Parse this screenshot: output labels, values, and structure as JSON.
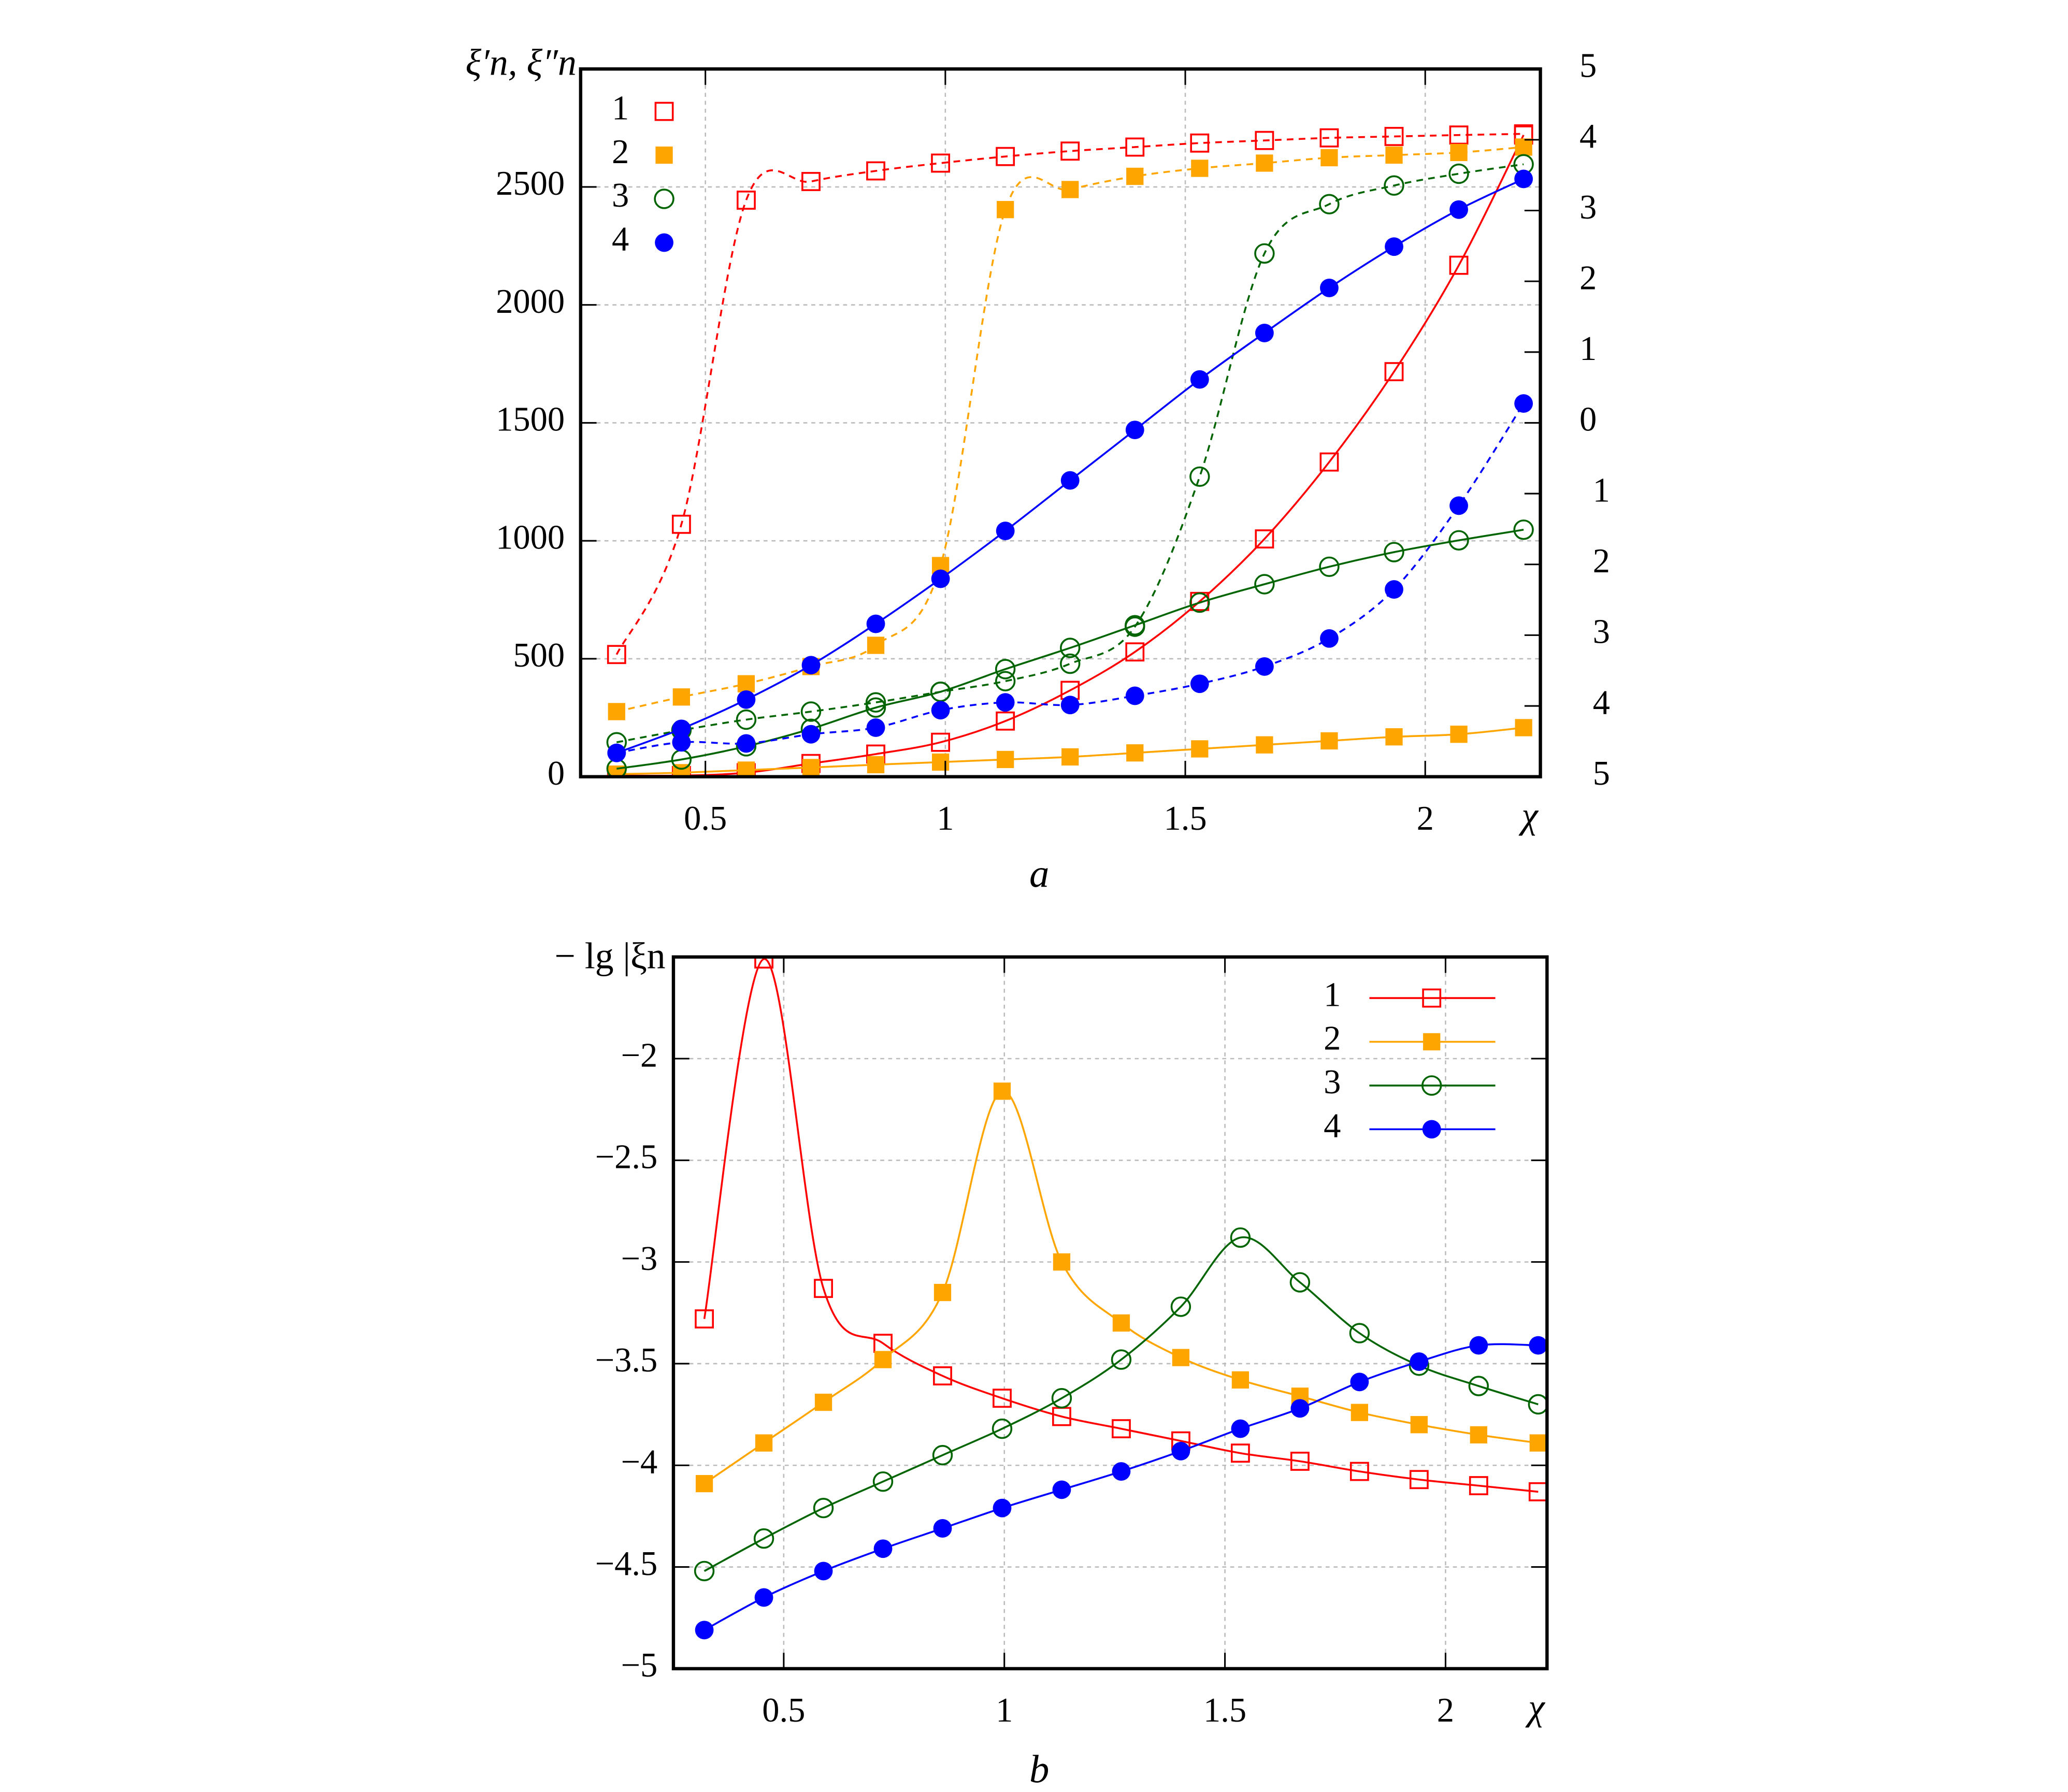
{
  "chart_data": [
    {
      "panel": "a",
      "type": "line",
      "ylabel": "ξ′n, ξ″n",
      "xlabel": "χ",
      "xlim": [
        0.24,
        2.24
      ],
      "ylim": [
        0,
        3000
      ],
      "xticks": [
        0.5,
        1,
        1.5,
        2
      ],
      "xtick_labels": [
        "0.5",
        "1",
        "1.5",
        "2"
      ],
      "yticks": [
        0,
        500,
        1000,
        1500,
        2000,
        2500
      ],
      "ytick_labels": [
        "0",
        "500",
        "1000",
        "1500",
        "2000",
        "2500"
      ],
      "right_axis_tick_labels": [
        "5",
        "4",
        "3",
        "2",
        "1",
        "0",
        "1",
        "2",
        "3",
        "4",
        "5"
      ],
      "grid": true,
      "legend_placement": "top-left",
      "x": [
        0.315,
        0.45,
        0.585,
        0.72,
        0.855,
        0.99,
        1.125,
        1.26,
        1.395,
        1.53,
        1.665,
        1.8,
        1.935,
        2.07,
        2.205
      ],
      "series": [
        {
          "name": "1",
          "color": "#ff0000",
          "marker": "open-square",
          "line": "dashed",
          "values": [
            518,
            1070,
            2444,
            2523,
            2568,
            2601,
            2629,
            2652,
            2669,
            2686,
            2697,
            2708,
            2714,
            2720,
            2725
          ]
        },
        {
          "name": "1",
          "color": "#ff0000",
          "marker": "open-square",
          "line": "solid",
          "values": [
            5,
            5,
            17,
            56,
            96,
            146,
            236,
            366,
            529,
            743,
            1008,
            1334,
            1717,
            2168,
            2720
          ]
        },
        {
          "name": "2",
          "color": "#ffa500",
          "marker": "filled-square",
          "line": "dashed",
          "values": [
            276,
            338,
            394,
            467,
            557,
            895,
            2404,
            2489,
            2545,
            2579,
            2601,
            2624,
            2635,
            2646,
            2669
          ]
        },
        {
          "name": "2",
          "color": "#ffa500",
          "marker": "filled-square",
          "line": "solid",
          "values": [
            11,
            17,
            28,
            39,
            51,
            62,
            73,
            84,
            101,
            118,
            135,
            152,
            169,
            180,
            208
          ]
        },
        {
          "name": "3",
          "color": "#006400",
          "marker": "open-circle",
          "line": "dashed",
          "values": [
            146,
            197,
            242,
            276,
            315,
            360,
            405,
            479,
            636,
            1272,
            2218,
            2427,
            2506,
            2556,
            2596
          ]
        },
        {
          "name": "3",
          "color": "#006400",
          "marker": "open-circle",
          "line": "solid",
          "values": [
            34,
            73,
            129,
            203,
            293,
            360,
            456,
            546,
            642,
            738,
            816,
            890,
            952,
            1002,
            1047
          ]
        },
        {
          "name": "4",
          "color": "#0000ff",
          "marker": "filled-circle",
          "line": "dashed",
          "values": [
            101,
            146,
            141,
            180,
            208,
            282,
            315,
            304,
            343,
            394,
            467,
            586,
            794,
            1149,
            1582
          ]
        },
        {
          "name": "4",
          "color": "#0000ff",
          "marker": "filled-circle",
          "line": "solid",
          "values": [
            101,
            203,
            327,
            473,
            648,
            839,
            1042,
            1256,
            1470,
            1684,
            1881,
            2072,
            2247,
            2404,
            2534
          ]
        }
      ],
      "legend": [
        {
          "label": "1",
          "color": "#ff0000",
          "marker": "open-square"
        },
        {
          "label": "2",
          "color": "#ffa500",
          "marker": "filled-square"
        },
        {
          "label": "3",
          "color": "#006400",
          "marker": "open-circle"
        },
        {
          "label": "4",
          "color": "#0000ff",
          "marker": "filled-circle"
        }
      ]
    },
    {
      "panel": "b",
      "type": "line",
      "ylabel": "− lg |ξn",
      "xlabel": "χ",
      "xlim": [
        0.25,
        2.23
      ],
      "ylim": [
        -5,
        -1.5
      ],
      "xticks": [
        0.5,
        1,
        1.5,
        2
      ],
      "xtick_labels": [
        "0.5",
        "1",
        "1.5",
        "2"
      ],
      "yticks": [
        -2,
        -2.5,
        -3,
        -3.5,
        -4,
        -4.5,
        -5
      ],
      "ytick_labels": [
        "−2",
        "−2.5",
        "−3",
        "−3.5",
        "−4",
        "−4.5",
        "−5"
      ],
      "grid": true,
      "legend_placement": "top-right",
      "x": [
        0.32,
        0.455,
        0.59,
        0.725,
        0.86,
        0.995,
        1.13,
        1.265,
        1.4,
        1.535,
        1.67,
        1.805,
        1.94,
        2.075,
        2.21
      ],
      "series": [
        {
          "name": "1",
          "color": "#ff0000",
          "marker": "open-square",
          "line": "solid",
          "values": [
            -3.28,
            -1.51,
            -3.13,
            -3.4,
            -3.56,
            -3.67,
            -3.76,
            -3.82,
            -3.88,
            -3.94,
            -3.98,
            -4.03,
            -4.07,
            -4.1,
            -4.13
          ]
        },
        {
          "name": "2",
          "color": "#ffa500",
          "marker": "filled-square",
          "line": "solid",
          "values": [
            -4.09,
            -3.89,
            -3.69,
            -3.48,
            -3.15,
            -2.16,
            -3.0,
            -3.3,
            -3.47,
            -3.58,
            -3.66,
            -3.74,
            -3.8,
            -3.85,
            -3.89
          ]
        },
        {
          "name": "3",
          "color": "#006400",
          "marker": "open-circle",
          "line": "solid",
          "values": [
            -4.52,
            -4.36,
            -4.21,
            -4.08,
            -3.95,
            -3.82,
            -3.67,
            -3.48,
            -3.22,
            -2.88,
            -3.1,
            -3.35,
            -3.51,
            -3.61,
            -3.7
          ]
        },
        {
          "name": "4",
          "color": "#0000ff",
          "marker": "filled-circle",
          "line": "solid",
          "values": [
            -4.81,
            -4.65,
            -4.52,
            -4.41,
            -4.31,
            -4.21,
            -4.12,
            -4.03,
            -3.93,
            -3.82,
            -3.72,
            -3.59,
            -3.49,
            -3.41,
            -3.41
          ]
        }
      ],
      "legend": [
        {
          "label": "1",
          "color": "#ff0000",
          "marker": "open-square"
        },
        {
          "label": "2",
          "color": "#ffa500",
          "marker": "filled-square"
        },
        {
          "label": "3",
          "color": "#006400",
          "marker": "open-circle"
        },
        {
          "label": "4",
          "color": "#0000ff",
          "marker": "filled-circle"
        }
      ]
    }
  ]
}
